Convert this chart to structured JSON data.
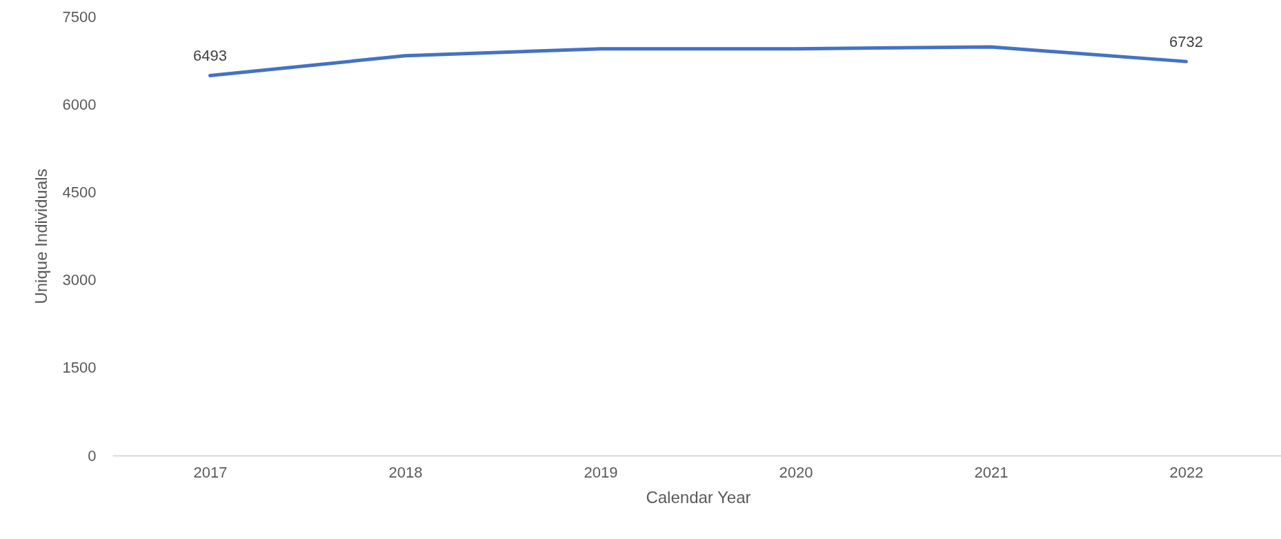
{
  "chart_data": {
    "type": "line",
    "xlabel": "Calendar Year",
    "ylabel": "Unique Individuals",
    "categories": [
      "2017",
      "2018",
      "2019",
      "2020",
      "2021",
      "2022"
    ],
    "series": [
      {
        "color": "#4472c4",
        "values": [
          6493,
          6830,
          6950,
          6950,
          6980,
          6732
        ],
        "value_labels": [
          "6493",
          null,
          null,
          null,
          null,
          "6732"
        ]
      }
    ],
    "ylim": [
      0,
      7500
    ],
    "yticks": [
      0,
      1500,
      3000,
      4500,
      6000,
      7500
    ],
    "grid": false,
    "legend": false,
    "marker": "none",
    "line_style": "solid"
  }
}
